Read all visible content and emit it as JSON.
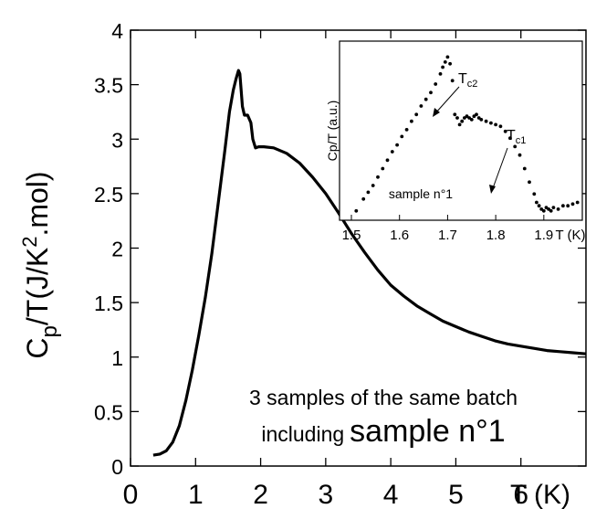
{
  "chart_data": [
    {
      "type": "line",
      "ylabel": "C",
      "ylabel_sub": "p",
      "ylabel_rest": "/T(J/K",
      "ylabel_sup": "2",
      "ylabel_end": ".mol)",
      "xlabel": "T (K)",
      "xlim": [
        0,
        7
      ],
      "ylim": [
        0,
        4
      ],
      "xticks": [
        0,
        1,
        2,
        3,
        4,
        5,
        6
      ],
      "yticks": [
        0,
        0.5,
        1,
        1.5,
        2,
        2.5,
        3,
        3.5,
        4
      ],
      "xtick_labels": [
        "0",
        "1",
        "2",
        "3",
        "4",
        "5",
        "6"
      ],
      "ytick_labels": [
        "0",
        "0.5",
        "1",
        "1.5",
        "2",
        "2.5",
        "3",
        "3.5",
        "4"
      ],
      "annotation_line1": "3 samples of the same batch",
      "annotation_line2_prefix": "including",
      "annotation_line2_emph": "sample n°1",
      "series": [
        {
          "x": [
            0.35,
            0.45,
            0.55,
            0.65,
            0.75,
            0.85,
            0.95,
            1.05,
            1.15,
            1.25,
            1.35,
            1.45,
            1.52,
            1.58,
            1.62,
            1.66,
            1.68,
            1.7,
            1.72,
            1.75,
            1.8,
            1.85,
            1.88,
            1.92,
            1.97,
            2.05,
            2.2,
            2.4,
            2.6,
            2.8,
            3.0,
            3.2,
            3.4,
            3.6,
            3.8,
            4.0,
            4.2,
            4.4,
            4.6,
            4.8,
            5.0,
            5.2,
            5.4,
            5.6,
            5.8,
            6.0,
            6.2,
            6.4,
            6.6,
            6.8,
            7.0
          ],
          "y": [
            0.1,
            0.11,
            0.14,
            0.22,
            0.37,
            0.6,
            0.88,
            1.2,
            1.55,
            1.95,
            2.42,
            2.9,
            3.25,
            3.45,
            3.55,
            3.63,
            3.6,
            3.45,
            3.3,
            3.22,
            3.22,
            3.15,
            3.0,
            2.92,
            2.93,
            2.93,
            2.92,
            2.87,
            2.78,
            2.65,
            2.5,
            2.32,
            2.13,
            1.96,
            1.8,
            1.66,
            1.56,
            1.47,
            1.4,
            1.33,
            1.28,
            1.23,
            1.19,
            1.15,
            1.12,
            1.1,
            1.08,
            1.06,
            1.05,
            1.04,
            1.03
          ]
        }
      ]
    },
    {
      "type": "scatter",
      "ylabel": "Cp/T (a.u.)",
      "xlabel": "T (K)",
      "xlim": [
        1.5,
        1.98
      ],
      "xticks": [
        1.5,
        1.6,
        1.7,
        1.8,
        1.9
      ],
      "xtick_labels": [
        "1.5",
        "1.6",
        "1.7",
        "1.8",
        "1.9"
      ],
      "sample_label": "sample n°1",
      "tc2_label": "T",
      "tc2_sub": "c2",
      "tc1_label": "T",
      "tc1_sub": "c1",
      "series": [
        {
          "x": [
            1.51,
            1.525,
            1.535,
            1.545,
            1.555,
            1.565,
            1.575,
            1.585,
            1.595,
            1.605,
            1.615,
            1.625,
            1.635,
            1.645,
            1.655,
            1.665,
            1.675,
            1.685,
            1.69,
            1.695,
            1.7,
            1.705,
            1.71,
            1.715,
            1.72,
            1.725,
            1.73,
            1.735,
            1.74,
            1.745,
            1.75,
            1.755,
            1.76,
            1.765,
            1.77,
            1.78,
            1.79,
            1.8,
            1.81,
            1.82,
            1.83,
            1.84,
            1.85,
            1.86,
            1.87,
            1.88,
            1.885,
            1.89,
            1.895,
            1.9,
            1.905,
            1.91,
            1.915,
            1.92,
            1.93,
            1.94,
            1.95,
            1.96,
            1.97
          ],
          "y": [
            0.05,
            0.12,
            0.16,
            0.2,
            0.25,
            0.3,
            0.35,
            0.4,
            0.44,
            0.49,
            0.53,
            0.58,
            0.62,
            0.67,
            0.71,
            0.75,
            0.8,
            0.86,
            0.9,
            0.93,
            0.96,
            0.92,
            0.82,
            0.62,
            0.6,
            0.56,
            0.58,
            0.6,
            0.61,
            0.6,
            0.59,
            0.61,
            0.62,
            0.6,
            0.59,
            0.58,
            0.57,
            0.56,
            0.55,
            0.52,
            0.48,
            0.43,
            0.38,
            0.3,
            0.22,
            0.15,
            0.1,
            0.08,
            0.06,
            0.05,
            0.07,
            0.06,
            0.05,
            0.07,
            0.06,
            0.08,
            0.08,
            0.09,
            0.1
          ]
        }
      ]
    }
  ]
}
